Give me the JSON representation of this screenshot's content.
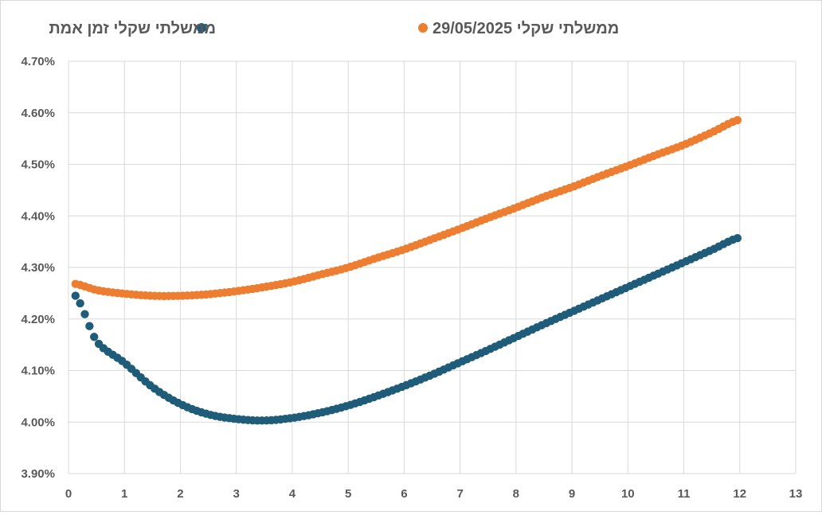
{
  "chart_data": {
    "type": "scatter",
    "grid": true,
    "legend_position": "top",
    "xlim": [
      0,
      13
    ],
    "ylim": [
      3.9,
      4.7
    ],
    "x_ticks": [
      "0",
      "1",
      "2",
      "3",
      "4",
      "5",
      "6",
      "7",
      "8",
      "9",
      "10",
      "11",
      "12",
      "13"
    ],
    "y_ticks": [
      "3.90%",
      "4.00%",
      "4.10%",
      "4.20%",
      "4.30%",
      "4.40%",
      "4.50%",
      "4.60%",
      "4.70%"
    ],
    "series": [
      {
        "name": "ממשלתי שקלי זמן אמת",
        "color": "#1f5c7a",
        "points": [
          [
            0.125,
            4.245
          ],
          [
            0.5,
            4.157
          ],
          [
            1.0,
            4.115
          ],
          [
            1.5,
            4.068
          ],
          [
            2.0,
            4.035
          ],
          [
            2.5,
            4.015
          ],
          [
            3.0,
            4.006
          ],
          [
            3.5,
            4.003
          ],
          [
            4.0,
            4.008
          ],
          [
            4.5,
            4.018
          ],
          [
            5.0,
            4.032
          ],
          [
            5.5,
            4.05
          ],
          [
            6.0,
            4.07
          ],
          [
            6.5,
            4.092
          ],
          [
            7.0,
            4.116
          ],
          [
            7.5,
            4.14
          ],
          [
            8.0,
            4.165
          ],
          [
            8.5,
            4.19
          ],
          [
            9.0,
            4.214
          ],
          [
            9.5,
            4.238
          ],
          [
            10.0,
            4.262
          ],
          [
            10.5,
            4.286
          ],
          [
            11.0,
            4.31
          ],
          [
            11.5,
            4.334
          ],
          [
            12.0,
            4.358
          ]
        ]
      },
      {
        "name": "29/05/2025 ממשלתי שקלי",
        "color": "#ed7d31",
        "points": [
          [
            0.125,
            4.268
          ],
          [
            0.5,
            4.256
          ],
          [
            1.0,
            4.249
          ],
          [
            1.5,
            4.245
          ],
          [
            2.0,
            4.245
          ],
          [
            2.5,
            4.248
          ],
          [
            3.0,
            4.254
          ],
          [
            3.5,
            4.262
          ],
          [
            4.0,
            4.272
          ],
          [
            4.5,
            4.286
          ],
          [
            5.0,
            4.3
          ],
          [
            5.5,
            4.318
          ],
          [
            6.0,
            4.335
          ],
          [
            6.5,
            4.355
          ],
          [
            7.0,
            4.375
          ],
          [
            7.5,
            4.396
          ],
          [
            8.0,
            4.416
          ],
          [
            8.5,
            4.437
          ],
          [
            9.0,
            4.456
          ],
          [
            9.5,
            4.477
          ],
          [
            10.0,
            4.497
          ],
          [
            10.5,
            4.518
          ],
          [
            11.0,
            4.538
          ],
          [
            11.5,
            4.562
          ],
          [
            12.0,
            4.587
          ]
        ]
      }
    ]
  }
}
